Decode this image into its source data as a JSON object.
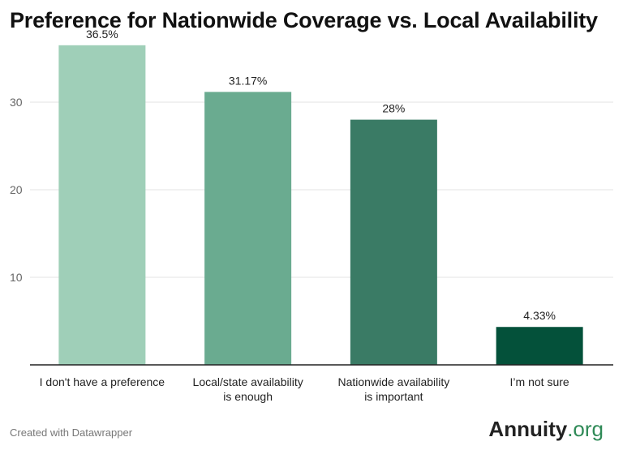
{
  "title": "Preference for Nationwide Coverage vs. Local Availability",
  "footer": {
    "credit": "Created with Datawrapper",
    "brand_main": "Annuity",
    "brand_suffix": ".org"
  },
  "chart_data": {
    "type": "bar",
    "categories": [
      [
        "I don't have a preference"
      ],
      [
        "Local/state availability",
        "is enough"
      ],
      [
        "Nationwide availability",
        "is important"
      ],
      [
        "I’m not sure"
      ]
    ],
    "values": [
      36.5,
      31.17,
      28,
      4.33
    ],
    "value_labels": [
      "36.5%",
      "31.17%",
      "28%",
      "4.33%"
    ],
    "colors": [
      "#9fcfb8",
      "#6aab90",
      "#3a7b65",
      "#04513a"
    ],
    "yticks": [
      10,
      20,
      30
    ],
    "ylim": [
      0,
      37.5
    ],
    "grid": true,
    "title": "Preference for Nationwide Coverage vs. Local Availability",
    "xlabel": "",
    "ylabel": ""
  }
}
